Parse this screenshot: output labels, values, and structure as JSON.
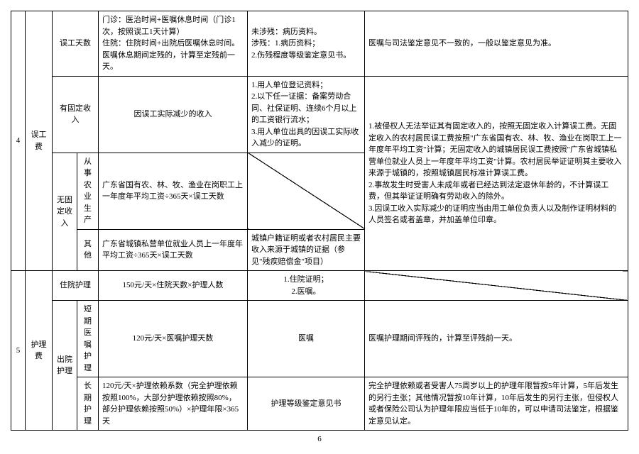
{
  "page_number": "6",
  "row4": {
    "num": "4",
    "label": "误工费",
    "r1": {
      "sub": "误工天数",
      "formula": "门诊：医治时间+医嘱休息时间（门诊1次，按照误工1天计算）\n住院：住院时间+出院后医嘱休息时间。医嘱休息期间定残的，计算至定残前一天。",
      "evidence": "未涉残：病历资料。\n涉残：1.病历资料；\n2.伤残程度等级鉴定意见书。",
      "note": "医嘱与司法鉴定意见不一致的，一般以鉴定意见为准。"
    },
    "r2": {
      "sub": "有固定收入",
      "formula": "因误工实际减少的收入",
      "evidence": "1.用人单位登记资料；\n2.以下任一证据：备案劳动合同、社保证明、连续6个月以上的工资银行流水；\n3.用人单位出具的因误工实际收入减少的证明。"
    },
    "r34_sub": "无固定收入",
    "r3": {
      "sub2": "从事农业生产",
      "formula": "广东省国有农、林、牧、渔业在岗职工上一年度年平均工资÷365天×误工天数"
    },
    "r4": {
      "sub2": "其他",
      "formula": "广东省城镇私营单位就业人员上一年度年平均工资÷365天×误工天数",
      "evidence": "城镇户籍证明或者农村居民主要收入来源于城镇的证据（参见\"残疾赔偿金\"项目）"
    },
    "note_merged": "1.被侵权人无法举证其有固定收入的，按照无固定收入计算误工费。无固定收入的农村居民误工费按照\"广东省国有农、林、牧、渔业在岗职工上一年度年平均工资\"计算；无固定收入的城镇居民误工费按照\"广东省城镇私营单位就业人员上一年度年平均工资\"计算。农村居民举证证明其主要收入来源于城镇的，按照城镇居民标准计算误工费。\n2.事故发生时受害人未成年或者已经达到法定退休年龄的，不计算误工费，但其举证证明确有劳动收入的除外。\n3.因误工收入实际减少的证明应当由用工单位负责人以及制作证明材料的人员签名或者盖章，并加盖单位印章。"
  },
  "row5": {
    "num": "5",
    "label": "护理费",
    "r1": {
      "sub": "住院护理",
      "formula": "150元/天×住院天数×护理人数",
      "evidence": "1.住院证明；\n2.医嘱。"
    },
    "r23_sub": "出院护理",
    "r2": {
      "sub2": "短期医嘱护理",
      "formula": "120元/天×医嘱护理天数",
      "evidence": "医嘱",
      "note": "医嘱护理期间评残的，计算至评残前一天。"
    },
    "r3": {
      "sub2": "长期护理",
      "formula": "120元/天×护理依赖系数（完全护理依赖按照100%，大部分护理依赖按照80%，部分护理依赖按照50%）×护理年限×365天",
      "evidence": "护理等级鉴定意见书",
      "note": "完全护理依赖或者受害人75周岁以上的护理年限暂按5年计算，5年后发生的另行主张；其他情况暂按10年计算，10年后发生的另行主张，但侵权人或者保险公司认为护理年限应当低于10年的，可以申请司法鉴定，根据鉴定意见认定。"
    }
  }
}
